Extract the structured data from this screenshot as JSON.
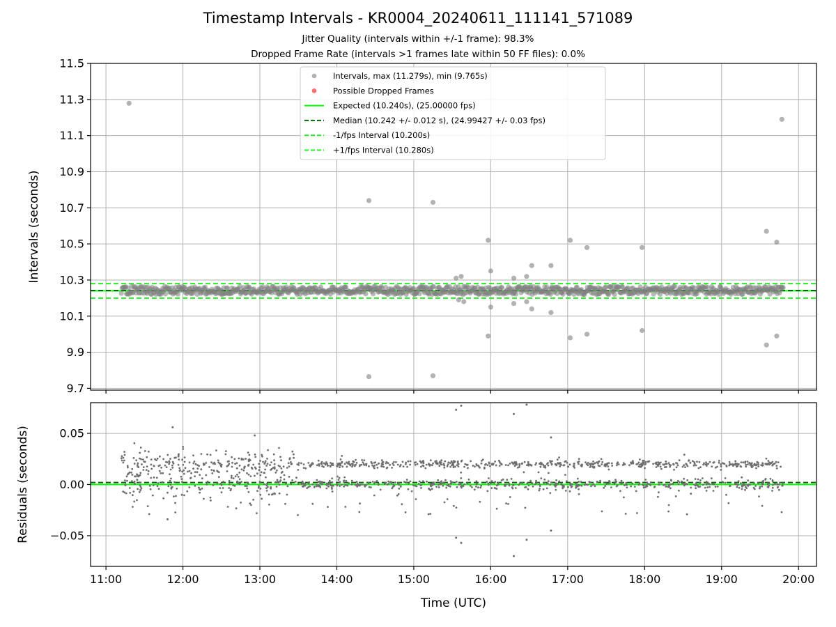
{
  "title": "Timestamp Intervals - KR0004_20240611_111141_571089",
  "subtitle_lines": [
    "Jitter Quality (intervals within +/-1 frame): 98.3%",
    "Dropped Frame Rate (intervals >1 frames late within 50 FF files): 0.0%"
  ],
  "colors": {
    "points": "#808080",
    "dropped": "#ff5555",
    "expected": "#00ff00",
    "median": "#006400",
    "bounds": "#22ee22",
    "grid": "#b0b0b0"
  },
  "chart_data": [
    {
      "type": "scatter",
      "name": "intervals-panel",
      "xlabel": "",
      "ylabel": "Intervals (seconds)",
      "xlim": [
        "10:48",
        "20:14"
      ],
      "ylim": [
        9.69,
        11.5
      ],
      "yticks": [
        "9.7",
        "9.9",
        "10.1",
        "10.3",
        "10.5",
        "10.7",
        "10.9",
        "11.1",
        "11.3",
        "11.5"
      ],
      "grid": true,
      "legend": "top-center",
      "series": [
        {
          "name": "Intervals, max (11.279s), min (9.765s)",
          "kind": "points",
          "summary": {
            "baseline": 10.242,
            "spread": 0.025,
            "start": "11:12",
            "end": "19:48"
          },
          "notable_points": [
            {
              "x": "11:18",
              "y": 11.279
            },
            {
              "x": "14:25",
              "y": 10.74
            },
            {
              "x": "14:25",
              "y": 9.765
            },
            {
              "x": "15:15",
              "y": 10.73
            },
            {
              "x": "15:15",
              "y": 9.77
            },
            {
              "x": "15:33",
              "y": 10.31
            },
            {
              "x": "15:35",
              "y": 10.19
            },
            {
              "x": "15:37",
              "y": 10.32
            },
            {
              "x": "15:39",
              "y": 10.18
            },
            {
              "x": "15:58",
              "y": 10.52
            },
            {
              "x": "15:58",
              "y": 9.99
            },
            {
              "x": "16:00",
              "y": 10.35
            },
            {
              "x": "16:00",
              "y": 10.15
            },
            {
              "x": "16:18",
              "y": 10.31
            },
            {
              "x": "16:18",
              "y": 10.17
            },
            {
              "x": "16:28",
              "y": 10.32
            },
            {
              "x": "16:28",
              "y": 10.18
            },
            {
              "x": "16:32",
              "y": 10.38
            },
            {
              "x": "16:32",
              "y": 10.14
            },
            {
              "x": "16:47",
              "y": 10.38
            },
            {
              "x": "16:47",
              "y": 10.12
            },
            {
              "x": "17:02",
              "y": 10.52
            },
            {
              "x": "17:02",
              "y": 9.98
            },
            {
              "x": "17:15",
              "y": 10.48
            },
            {
              "x": "17:15",
              "y": 10.0
            },
            {
              "x": "17:58",
              "y": 10.48
            },
            {
              "x": "17:58",
              "y": 10.02
            },
            {
              "x": "19:35",
              "y": 10.57
            },
            {
              "x": "19:35",
              "y": 9.94
            },
            {
              "x": "19:43",
              "y": 10.51
            },
            {
              "x": "19:43",
              "y": 9.99
            },
            {
              "x": "19:47",
              "y": 11.19
            }
          ]
        },
        {
          "name": "Possible Dropped Frames",
          "kind": "points",
          "points": []
        },
        {
          "name": "Expected (10.240s), (25.00000 fps)",
          "kind": "hline",
          "y": 10.24,
          "style": "solid"
        },
        {
          "name": "Median (10.242 +/- 0.012 s), (24.99427 +/- 0.03 fps)",
          "kind": "hline",
          "y": 10.242,
          "style": "dashed"
        },
        {
          "name": "-1/fps Interval (10.200s)",
          "kind": "hline",
          "y": 10.2,
          "style": "dashed"
        },
        {
          "name": "+1/fps Interval (10.280s)",
          "kind": "hline",
          "y": 10.28,
          "style": "dashed"
        }
      ]
    },
    {
      "type": "scatter",
      "name": "residuals-panel",
      "xlabel": "Time (UTC)",
      "ylabel": "Residuals (seconds)",
      "xlim": [
        "10:48",
        "20:14"
      ],
      "ylim": [
        -0.08,
        0.08
      ],
      "xticks": [
        "11:00",
        "12:00",
        "13:00",
        "14:00",
        "15:00",
        "16:00",
        "17:00",
        "18:00",
        "19:00",
        "20:00"
      ],
      "yticks": [
        "0.05",
        "0.00",
        "−0.05"
      ],
      "ytick_values": [
        0.05,
        0.0,
        -0.05
      ],
      "grid": true,
      "series": [
        {
          "name": "residuals",
          "kind": "points",
          "summary": {
            "upper_band": 0.02,
            "lower_band": 0.0,
            "start": "11:12",
            "end": "19:48"
          },
          "notable_points": [
            {
              "x": "11:52",
              "y": 0.056
            },
            {
              "x": "12:56",
              "y": 0.048
            },
            {
              "x": "15:33",
              "y": 0.073
            },
            {
              "x": "15:37",
              "y": 0.077
            },
            {
              "x": "15:33",
              "y": -0.052
            },
            {
              "x": "15:37",
              "y": -0.057
            },
            {
              "x": "16:18",
              "y": 0.069
            },
            {
              "x": "16:18",
              "y": -0.07
            },
            {
              "x": "16:28",
              "y": 0.078
            },
            {
              "x": "16:28",
              "y": -0.054
            },
            {
              "x": "16:47",
              "y": -0.045
            },
            {
              "x": "16:47",
              "y": 0.046
            },
            {
              "x": "11:48",
              "y": -0.034
            }
          ]
        },
        {
          "name": "median-offset",
          "kind": "hline",
          "y": 0.002,
          "style": "dashed"
        },
        {
          "name": "expected-zero",
          "kind": "hline",
          "y": 0.0,
          "style": "solid"
        }
      ]
    }
  ]
}
